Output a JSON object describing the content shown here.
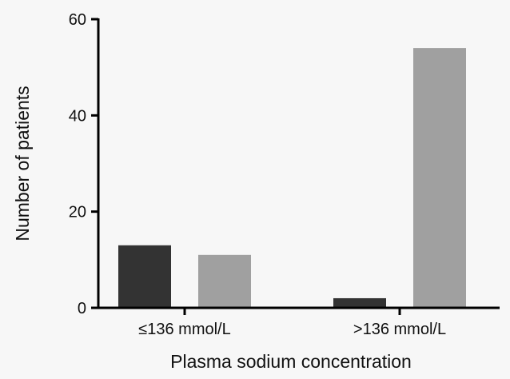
{
  "chart_data": {
    "type": "bar",
    "categories": [
      "≤136 mmol/L",
      ">136 mmol/L"
    ],
    "series": [
      {
        "values": [
          13,
          2
        ],
        "color": "#333333"
      },
      {
        "values": [
          11,
          54
        ],
        "color": "#a0a0a0"
      }
    ],
    "xlabel": "Plasma sodium concentration",
    "ylabel": "Number of patients",
    "ylim": [
      0,
      60
    ],
    "yticks": [
      0,
      20,
      40,
      60
    ],
    "grid": false,
    "legend": "none"
  }
}
